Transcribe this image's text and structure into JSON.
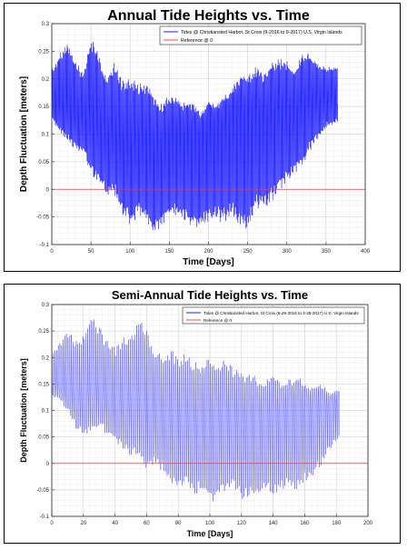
{
  "charts": [
    {
      "title": "Annual Tide Heights vs. Time",
      "xlabel": "Time [Days]",
      "ylabel": "Depth Fluctuation [meters]",
      "legend": [
        {
          "label": "Tides @ Christiansted Harbor, St Croix (9-2016 to 9-2017) U.S. Virgin Islands",
          "color": "#0000ff"
        },
        {
          "label": "Reference @ 0",
          "color": "#ff3333"
        }
      ]
    },
    {
      "title": "Semi-Annual Tide Heights vs. Time",
      "xlabel": "Time [Days]",
      "ylabel": "Depth Fluctuation [meters]",
      "legend": [
        {
          "label": "Tides @ Christiansted Harbor, St Croix (9-28-2016 to 3-28-2017) U.S. Virgin Islands",
          "color": "#0000ff"
        },
        {
          "label": "Reference @ 0",
          "color": "#ff3333"
        }
      ]
    }
  ],
  "chart_data": [
    {
      "type": "line",
      "title": "Annual Tide Heights vs. Time",
      "xlabel": "Time [Days]",
      "ylabel": "Depth Fluctuation [meters]",
      "xlim": [
        0,
        400
      ],
      "ylim": [
        -0.1,
        0.3
      ],
      "xticks": [
        0,
        50,
        100,
        150,
        200,
        250,
        300,
        350,
        400
      ],
      "yticks": [
        -0.1,
        -0.05,
        0,
        0.05,
        0.1,
        0.15,
        0.2,
        0.25,
        0.3
      ],
      "grid": true,
      "legend_position": "top-right",
      "series": [
        {
          "name": "Tides @ Christiansted Harbor, St Croix (9-2016 to 9-2017) U.S. Virgin Islands",
          "color": "#0000ff",
          "envelope_x": [
            0,
            10,
            20,
            30,
            40,
            50,
            60,
            70,
            80,
            90,
            100,
            110,
            120,
            130,
            140,
            150,
            160,
            170,
            180,
            190,
            200,
            210,
            220,
            230,
            240,
            250,
            260,
            270,
            280,
            290,
            300,
            310,
            320,
            330,
            340,
            350,
            365
          ],
          "envelope_max": [
            0.22,
            0.25,
            0.27,
            0.24,
            0.22,
            0.29,
            0.26,
            0.22,
            0.25,
            0.22,
            0.23,
            0.22,
            0.23,
            0.21,
            0.19,
            0.21,
            0.21,
            0.2,
            0.21,
            0.19,
            0.22,
            0.21,
            0.23,
            0.24,
            0.27,
            0.26,
            0.27,
            0.25,
            0.27,
            0.27,
            0.26,
            0.24,
            0.27,
            0.26,
            0.24,
            0.23,
            0.23
          ],
          "envelope_min": [
            0.11,
            0.08,
            0.06,
            0.05,
            0.05,
            0.0,
            -0.01,
            -0.03,
            -0.03,
            -0.06,
            -0.08,
            -0.06,
            -0.07,
            -0.09,
            -0.07,
            -0.06,
            -0.05,
            -0.06,
            -0.07,
            -0.07,
            -0.06,
            -0.06,
            -0.06,
            -0.05,
            -0.07,
            -0.08,
            -0.04,
            -0.04,
            -0.03,
            -0.01,
            0.0,
            0.02,
            0.03,
            0.06,
            0.08,
            0.1,
            0.11
          ]
        },
        {
          "name": "Reference @ 0",
          "color": "#ff3333",
          "x": [
            0,
            400
          ],
          "y": [
            0,
            0
          ]
        }
      ]
    },
    {
      "type": "line",
      "title": "Semi-Annual Tide Heights vs. Time",
      "xlabel": "Time [Days]",
      "ylabel": "Depth Fluctuation [meters]",
      "xlim": [
        0,
        200
      ],
      "ylim": [
        -0.1,
        0.3
      ],
      "xticks": [
        0,
        20,
        40,
        60,
        80,
        100,
        120,
        140,
        160,
        180,
        200
      ],
      "yticks": [
        -0.1,
        -0.05,
        0,
        0.05,
        0.1,
        0.15,
        0.2,
        0.25,
        0.3
      ],
      "grid": true,
      "legend_position": "top-right",
      "series": [
        {
          "name": "Tides @ Christiansted Harbor, St Croix (9-28-2016 to 3-28-2017) U.S. Virgin Islands",
          "color": "#0000ff",
          "envelope_x": [
            0,
            5,
            10,
            15,
            20,
            25,
            30,
            35,
            40,
            45,
            50,
            55,
            60,
            65,
            70,
            75,
            80,
            85,
            90,
            95,
            100,
            105,
            110,
            115,
            120,
            125,
            130,
            135,
            140,
            145,
            150,
            155,
            160,
            165,
            170,
            175,
            182
          ],
          "envelope_max": [
            0.21,
            0.23,
            0.26,
            0.24,
            0.25,
            0.29,
            0.27,
            0.24,
            0.23,
            0.25,
            0.26,
            0.29,
            0.27,
            0.23,
            0.22,
            0.24,
            0.22,
            0.23,
            0.22,
            0.21,
            0.23,
            0.22,
            0.23,
            0.21,
            0.21,
            0.2,
            0.2,
            0.19,
            0.21,
            0.19,
            0.2,
            0.21,
            0.19,
            0.18,
            0.19,
            0.16,
            0.16
          ],
          "envelope_min": [
            0.11,
            0.1,
            0.07,
            0.04,
            0.02,
            0.03,
            0.04,
            0.03,
            0.02,
            0.0,
            -0.01,
            -0.02,
            -0.04,
            -0.02,
            -0.04,
            -0.06,
            -0.07,
            -0.06,
            -0.08,
            -0.07,
            -0.09,
            -0.08,
            -0.07,
            -0.06,
            -0.08,
            -0.07,
            -0.08,
            -0.06,
            -0.07,
            -0.06,
            -0.05,
            -0.06,
            -0.04,
            -0.03,
            -0.01,
            0.02,
            0.05
          ]
        },
        {
          "name": "Reference @ 0",
          "color": "#ff3333",
          "x": [
            0,
            200
          ],
          "y": [
            0,
            0
          ]
        }
      ]
    }
  ]
}
